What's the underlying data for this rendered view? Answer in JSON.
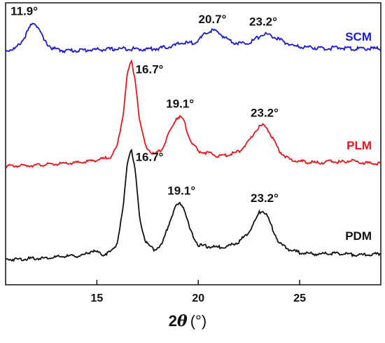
{
  "chart_data": {
    "type": "line",
    "xlabel_prefix": "2",
    "xlabel_symbol": "θ",
    "xlabel_unit": "(°)",
    "xlim": [
      10.5,
      29
    ],
    "xticks": [
      15,
      20,
      25
    ],
    "ylabel": "",
    "grid": false,
    "legend": "inline labels at right",
    "series": [
      {
        "name": "SCM",
        "color": "#1a1ad6",
        "x": [
          10.5,
          11.0,
          11.4,
          11.7,
          11.9,
          12.1,
          12.4,
          12.8,
          13.3,
          14.0,
          14.8,
          15.6,
          16.4,
          17.2,
          18.0,
          18.8,
          19.2,
          19.6,
          20.0,
          20.4,
          20.7,
          21.0,
          21.4,
          21.8,
          22.2,
          22.6,
          23.0,
          23.2,
          23.5,
          23.9,
          24.3,
          24.8,
          25.5,
          26.2,
          27.0,
          27.8,
          28.4,
          29.0
        ],
        "y": [
          0.0,
          0.05,
          0.3,
          0.6,
          0.72,
          0.6,
          0.25,
          0.05,
          0.0,
          0.0,
          0.02,
          0.03,
          0.05,
          0.03,
          0.05,
          0.12,
          0.2,
          0.18,
          0.25,
          0.45,
          0.52,
          0.45,
          0.3,
          0.2,
          0.18,
          0.22,
          0.35,
          0.42,
          0.4,
          0.3,
          0.2,
          0.1,
          0.08,
          0.05,
          0.07,
          0.04,
          0.05,
          0.04
        ]
      },
      {
        "name": "PLM",
        "color": "#e8151b",
        "x": [
          10.5,
          11.5,
          12.5,
          13.5,
          14.3,
          14.9,
          15.3,
          15.7,
          16.0,
          16.3,
          16.5,
          16.7,
          16.9,
          17.1,
          17.4,
          17.8,
          18.2,
          18.6,
          18.9,
          19.1,
          19.3,
          19.6,
          20.0,
          20.5,
          21.0,
          21.5,
          22.0,
          22.5,
          22.8,
          23.0,
          23.2,
          23.4,
          23.7,
          24.0,
          24.5,
          25.0,
          25.5,
          26.0,
          26.5,
          27.0,
          27.5,
          28.0,
          28.5,
          29.0
        ],
        "y": [
          0.0,
          0.02,
          0.05,
          0.08,
          0.12,
          0.18,
          0.22,
          0.3,
          0.6,
          1.6,
          2.8,
          3.2,
          2.6,
          1.4,
          0.6,
          0.35,
          0.5,
          1.05,
          1.45,
          1.52,
          1.35,
          0.8,
          0.45,
          0.4,
          0.3,
          0.35,
          0.45,
          0.75,
          1.05,
          1.2,
          1.25,
          1.15,
          0.8,
          0.45,
          0.2,
          0.15,
          0.12,
          0.1,
          0.15,
          0.12,
          0.18,
          0.12,
          0.08,
          0.1
        ]
      },
      {
        "name": "PDM",
        "color": "#111111",
        "x": [
          10.5,
          11.5,
          12.5,
          13.5,
          14.3,
          14.8,
          15.3,
          15.7,
          16.0,
          16.3,
          16.5,
          16.7,
          16.9,
          17.1,
          17.4,
          17.8,
          18.2,
          18.6,
          18.9,
          19.1,
          19.3,
          19.6,
          20.0,
          20.5,
          21.0,
          21.5,
          22.0,
          22.5,
          22.8,
          23.0,
          23.2,
          23.4,
          23.7,
          24.0,
          24.5,
          25.0,
          25.5,
          26.0,
          26.5,
          27.0,
          27.5,
          28.0,
          28.5,
          29.0
        ],
        "y": [
          0.0,
          0.02,
          0.05,
          0.1,
          0.12,
          0.28,
          0.15,
          0.25,
          0.5,
          1.6,
          3.0,
          3.45,
          2.7,
          1.3,
          0.55,
          0.3,
          0.45,
          1.2,
          1.65,
          1.75,
          1.6,
          0.9,
          0.45,
          0.4,
          0.38,
          0.42,
          0.55,
          0.85,
          1.2,
          1.45,
          1.52,
          1.35,
          0.9,
          0.5,
          0.3,
          0.22,
          0.18,
          0.16,
          0.2,
          0.18,
          0.16,
          0.14,
          0.15,
          0.18
        ]
      }
    ],
    "annotations": [
      {
        "text": "11.9°",
        "series": "SCM"
      },
      {
        "text": "20.7°",
        "series": "SCM"
      },
      {
        "text": "23.2°",
        "series": "SCM"
      },
      {
        "text": "16.7°",
        "series": "PLM"
      },
      {
        "text": "19.1°",
        "series": "PLM"
      },
      {
        "text": "23.2°",
        "series": "PLM"
      },
      {
        "text": "16.7°",
        "series": "PDM"
      },
      {
        "text": "19.1°",
        "series": "PDM"
      },
      {
        "text": "23.2°",
        "series": "PDM"
      }
    ]
  }
}
